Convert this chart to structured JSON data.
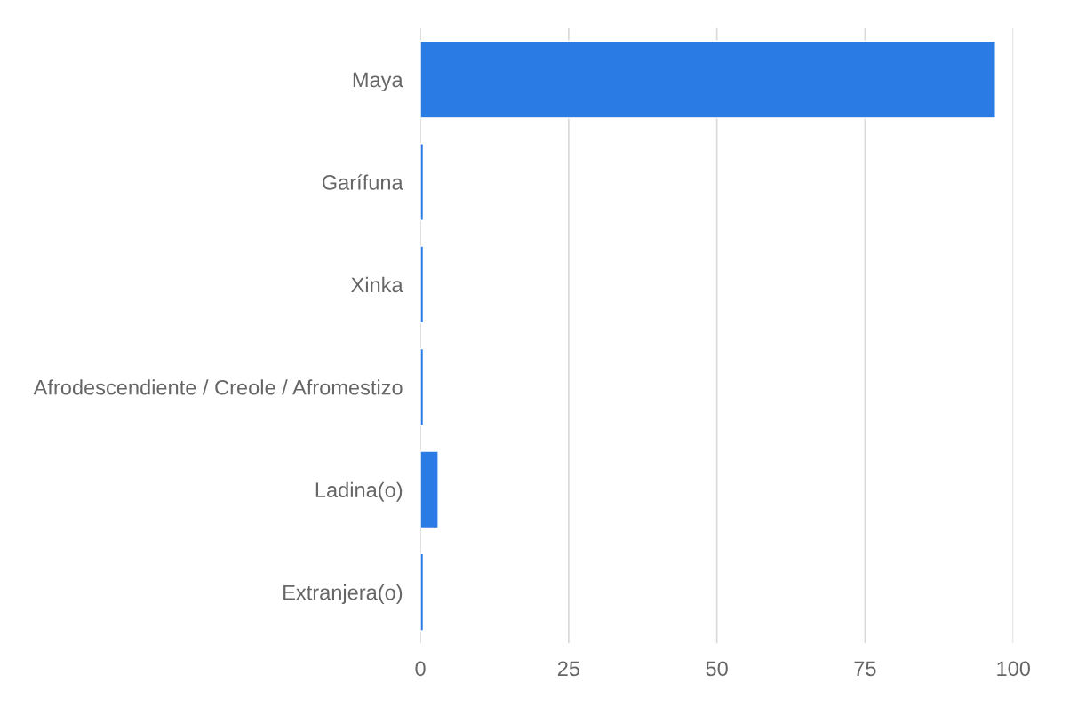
{
  "chart_data": {
    "type": "bar",
    "orientation": "horizontal",
    "categories": [
      "Maya",
      "Garífuna",
      "Xinka",
      "Afrodescendiente / Creole / Afromestizo",
      "Ladina(o)",
      "Extranjera(o)"
    ],
    "values": [
      97,
      0.5,
      0.5,
      0.5,
      3,
      0.5
    ],
    "color": "#2b7be4",
    "xlim": [
      0,
      100
    ],
    "xticks": [
      0,
      25,
      50,
      75,
      100
    ],
    "grid": "x",
    "legend": false
  }
}
